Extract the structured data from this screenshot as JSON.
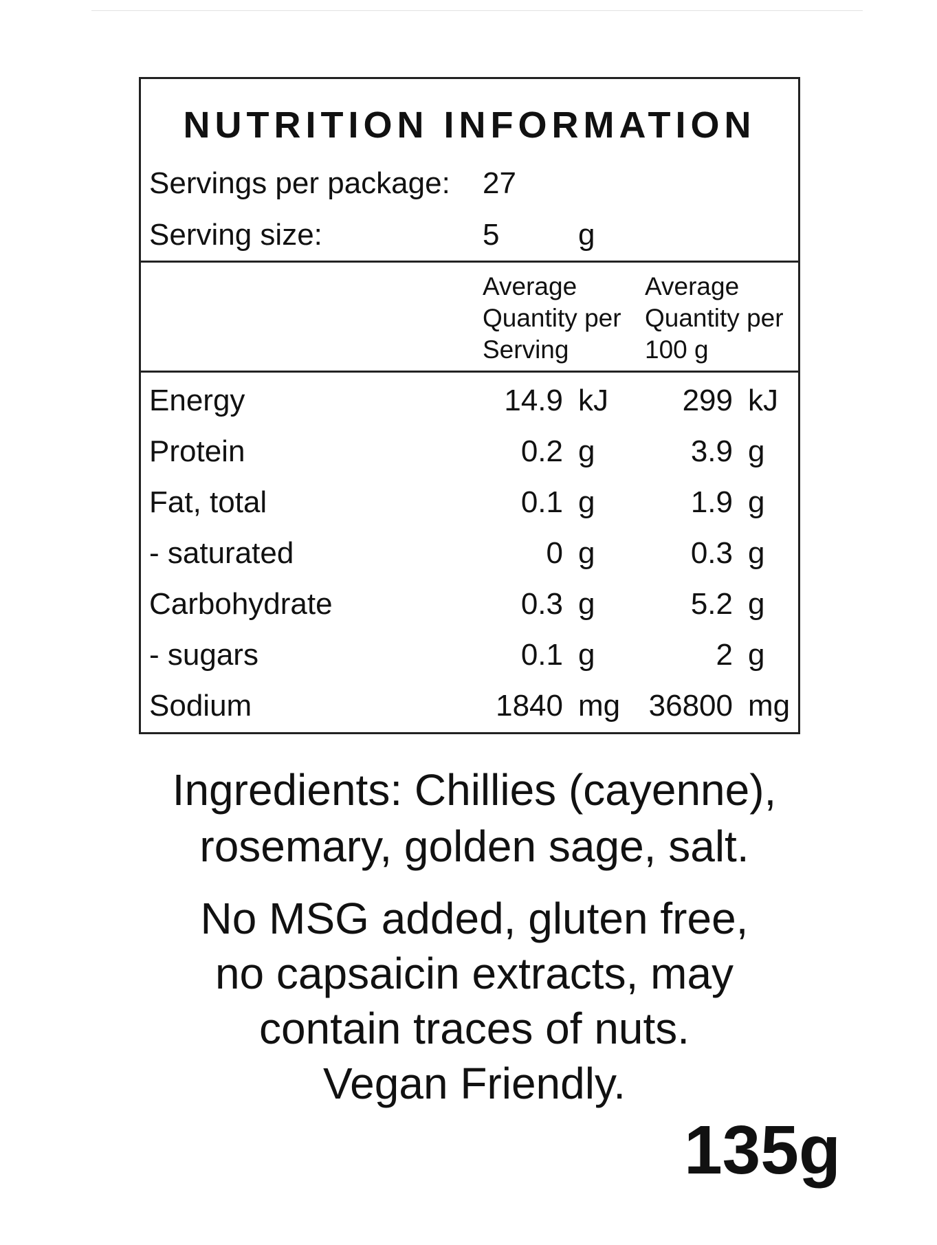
{
  "panel": {
    "title": "NUTRITION INFORMATION",
    "servings_label": "Servings per package:",
    "servings_value": "27",
    "serving_size_label": "Serving size:",
    "serving_size_value": "5",
    "serving_size_unit": "g",
    "columns": {
      "per_serving": [
        "Average",
        "Quantity per",
        "Serving"
      ],
      "per_100g": [
        "Average",
        "Quantity per",
        "100 g"
      ]
    },
    "rows": [
      {
        "name": "Energy",
        "serving": "14.9",
        "serving_unit": "kJ",
        "per100": "299",
        "per100_unit": "kJ"
      },
      {
        "name": "Protein",
        "serving": "0.2",
        "serving_unit": "g",
        "per100": "3.9",
        "per100_unit": "g"
      },
      {
        "name": "Fat, total",
        "serving": "0.1",
        "serving_unit": "g",
        "per100": "1.9",
        "per100_unit": "g"
      },
      {
        "name": "- saturated",
        "serving": "0",
        "serving_unit": "g",
        "per100": "0.3",
        "per100_unit": "g"
      },
      {
        "name": "Carbohydrate",
        "serving": "0.3",
        "serving_unit": "g",
        "per100": "5.2",
        "per100_unit": "g"
      },
      {
        "name": "- sugars",
        "serving": "0.1",
        "serving_unit": "g",
        "per100": "2",
        "per100_unit": "g"
      },
      {
        "name": "Sodium",
        "serving": "1840",
        "serving_unit": "mg",
        "per100": "36800",
        "per100_unit": "mg"
      }
    ]
  },
  "ingredients": {
    "line1": "Ingredients: Chillies (cayenne),",
    "line2": "rosemary, golden sage, salt."
  },
  "notes": {
    "line1": "No MSG added, gluten free,",
    "line2": "no capsaicin extracts, may",
    "line3": "contain traces of nuts.",
    "line4": "Vegan Friendly."
  },
  "net_weight": "135g"
}
